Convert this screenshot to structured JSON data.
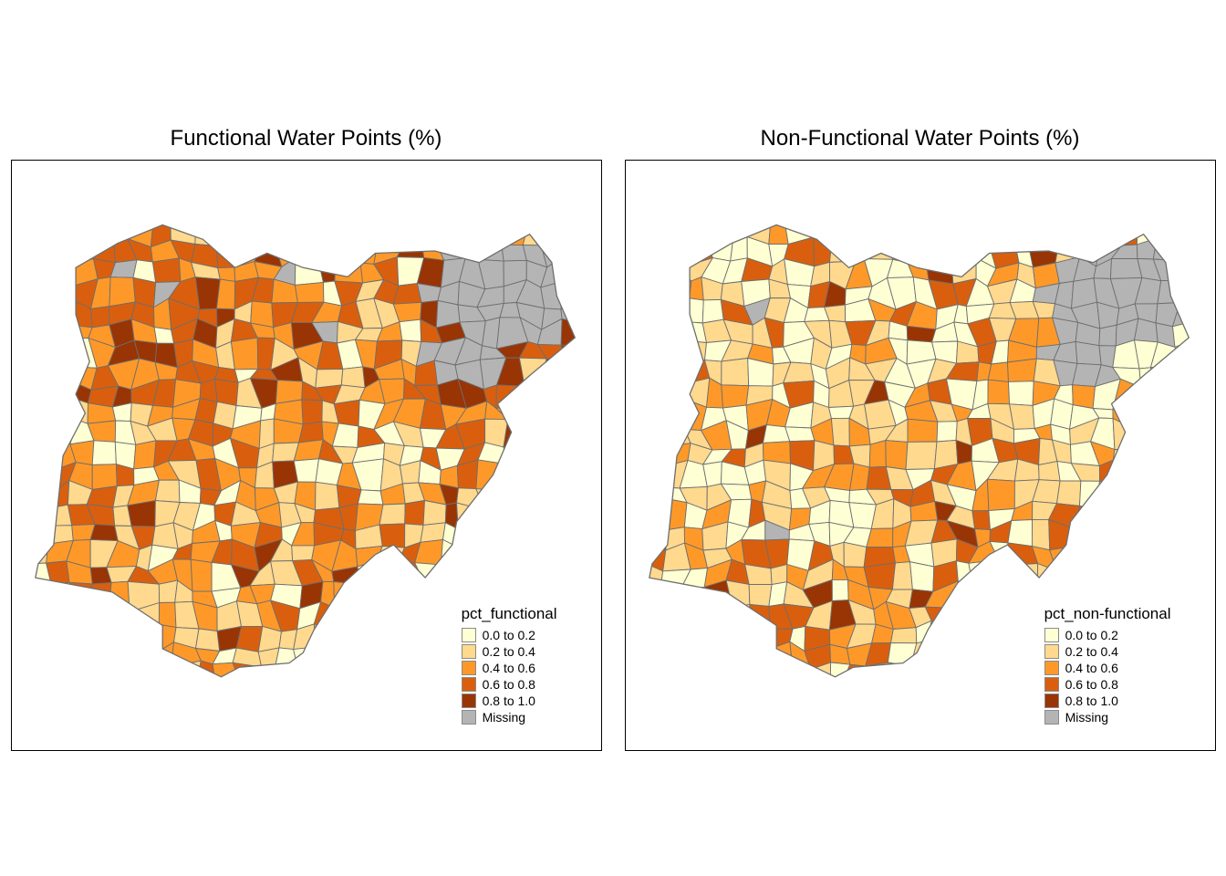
{
  "figure": {
    "background": "#ffffff",
    "frame_border_color": "#000000",
    "boundary_color": "#6e6e6e"
  },
  "panels": [
    {
      "id": "functional",
      "title": "Functional Water Points (%)",
      "legend_title": "pct_functional",
      "legend": [
        {
          "label": "0.0 to 0.2",
          "color": "#FFFFD4"
        },
        {
          "label": "0.2 to 0.4",
          "color": "#FED98E"
        },
        {
          "label": "0.4 to 0.6",
          "color": "#FE9929"
        },
        {
          "label": "0.6 to 0.8",
          "color": "#D95F0E"
        },
        {
          "label": "0.8 to 1.0",
          "color": "#993404"
        },
        {
          "label": "Missing",
          "color": "#B4B4B4"
        }
      ]
    },
    {
      "id": "non-functional",
      "title": "Non-Functional Water Points (%)",
      "legend_title": "pct_non-functional",
      "legend": [
        {
          "label": "0.0 to 0.2",
          "color": "#FFFFD4"
        },
        {
          "label": "0.2 to 0.4",
          "color": "#FED98E"
        },
        {
          "label": "0.4 to 0.6",
          "color": "#FE9929"
        },
        {
          "label": "0.6 to 0.8",
          "color": "#D95F0E"
        },
        {
          "label": "0.8 to 1.0",
          "color": "#993404"
        },
        {
          "label": "Missing",
          "color": "#B4B4B4"
        }
      ]
    }
  ]
}
